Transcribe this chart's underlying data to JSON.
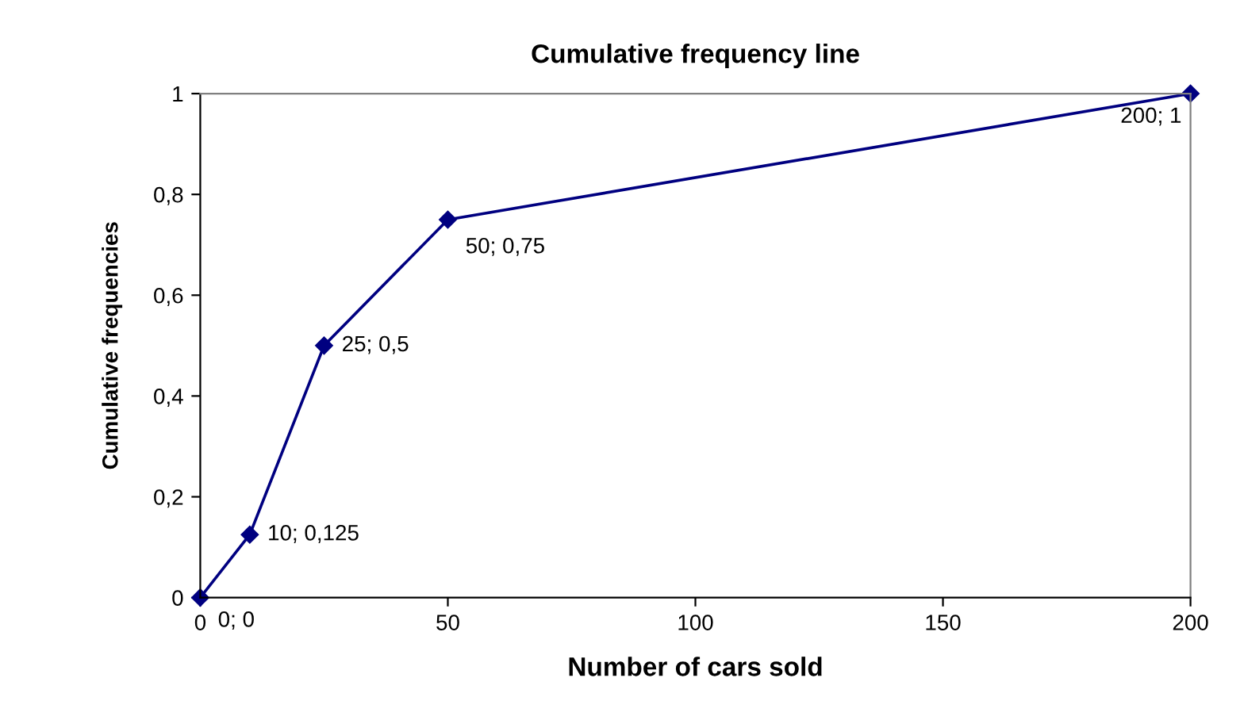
{
  "chart_data": {
    "type": "line",
    "title": "Cumulative frequency line",
    "xlabel": "Number of cars sold",
    "ylabel": "Cumulative frequencies",
    "x": [
      0,
      10,
      25,
      50,
      200
    ],
    "series": [
      {
        "color": "#000080",
        "values": [
          0,
          0.125,
          0.5,
          0.75,
          1
        ],
        "value_labels": [
          "0; 0",
          "10; 0,125",
          "25; 0,5",
          "50; 0,75",
          "200; 1"
        ]
      }
    ],
    "xlim": [
      0,
      200
    ],
    "xticks": [
      0,
      50,
      100,
      150,
      200
    ],
    "ylim": [
      0,
      1
    ],
    "yticks": [
      0,
      {
        "value": 0.2,
        "label": "0,2"
      },
      {
        "value": 0.4,
        "label": "0,4"
      },
      {
        "value": 0.6,
        "label": "0,6"
      },
      {
        "value": 0.8,
        "label": "0,8"
      },
      1
    ],
    "grid": false,
    "legend": false,
    "marker": "diamond",
    "line_style": "solid"
  }
}
